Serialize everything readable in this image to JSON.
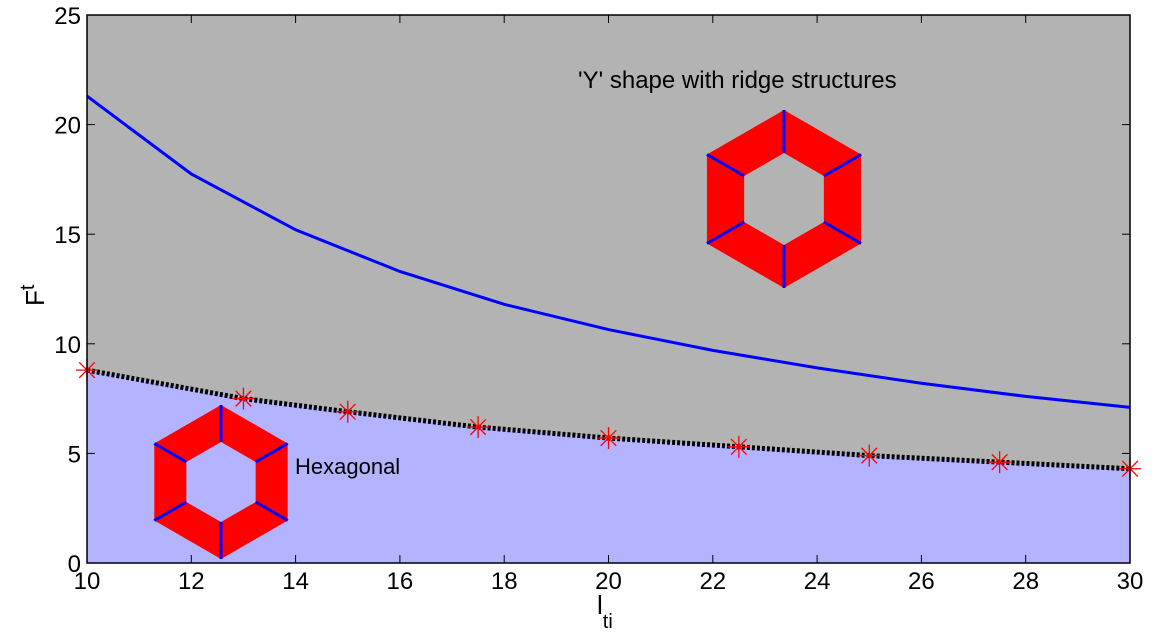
{
  "chart_data": {
    "type": "line",
    "xlabel": {
      "text": "l",
      "sub": "ti"
    },
    "ylabel": {
      "text": "F",
      "sub": "t"
    },
    "annotations": [
      "'Y' shape with ridge structures",
      "Hexagonal"
    ],
    "xlim": [
      10,
      30
    ],
    "ylim": [
      0,
      25
    ],
    "xticks": [
      10,
      12,
      14,
      16,
      18,
      20,
      22,
      24,
      26,
      28,
      30
    ],
    "yticks": [
      0,
      5,
      10,
      15,
      20,
      25
    ],
    "background_color": "#b3b3b3",
    "below_color": "#b3b3ff",
    "series": [
      {
        "color": "#0000ff",
        "style": "solid",
        "x": [
          10,
          12,
          14,
          16,
          18,
          20,
          22,
          24,
          26,
          28,
          30
        ],
        "values": [
          21.3,
          17.75,
          15.2,
          13.3,
          11.8,
          10.65,
          9.7,
          8.9,
          8.2,
          7.6,
          7.1
        ]
      },
      {
        "color": "#000000",
        "style": "dotted",
        "marker_color": "#ff0000",
        "fill_below": true,
        "x": [
          10,
          13,
          15,
          17.5,
          20,
          22.5,
          25,
          27.5,
          30
        ],
        "values": [
          8.8,
          7.5,
          6.9,
          6.2,
          5.7,
          5.3,
          4.9,
          4.6,
          4.3
        ]
      }
    ]
  }
}
